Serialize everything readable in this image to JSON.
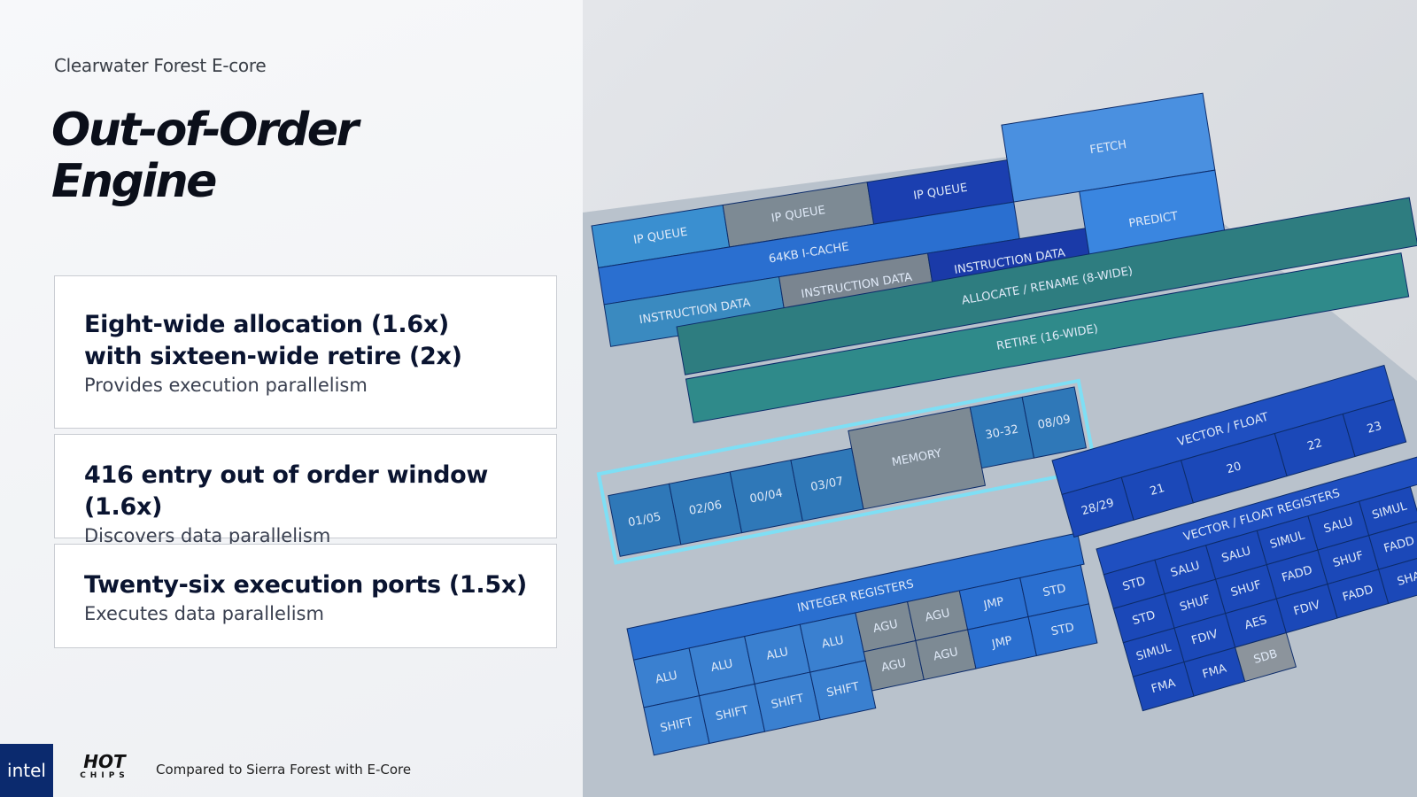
{
  "header": {
    "subtitle": "Clearwater Forest E-core",
    "title_lines": [
      "Out-of-Order",
      "Engine"
    ]
  },
  "cards": [
    {
      "heading_lines": [
        "Eight-wide allocation (1.6x)",
        "with sixteen-wide retire (2x)"
      ],
      "description": "Provides execution parallelism"
    },
    {
      "heading_lines": [
        "416 entry out of order window (1.6x)"
      ],
      "description": "Discovers data parallelism"
    },
    {
      "heading_lines": [
        "Twenty-six execution ports (1.5x)"
      ],
      "description": "Executes data parallelism"
    }
  ],
  "footer": {
    "logo": "intel",
    "event_logo": [
      "HOT",
      "CHIPS"
    ],
    "note": "Compared to Sierra Forest with E-Core"
  },
  "die": {
    "front_end": [
      "IP QUEUE",
      "IP QUEUE",
      "IP QUEUE",
      "FETCH",
      "64KB I-CACHE",
      "INSTRUCTION DATA",
      "INSTRUCTION DATA",
      "INSTRUCTION DATA",
      "PREDICT"
    ],
    "bars": [
      "ALLOCATE / RENAME (8-WIDE)",
      "RETIRE (16-WIDE)"
    ],
    "ports": [
      "01/05",
      "02/06",
      "00/04",
      "03/07",
      "MEMORY",
      "30-32",
      "08/09"
    ],
    "vector": [
      "VECTOR / FLOAT",
      "28/29",
      "21",
      "20",
      "22",
      "23"
    ],
    "execution": [
      "INTEGER REGISTERS",
      "ALU",
      "ALU",
      "ALU",
      "ALU",
      "AGU",
      "AGU",
      "JMP",
      "STD",
      "SHIFT",
      "SHIFT",
      "SHIFT",
      "SHIFT",
      "AGU",
      "AGU",
      "JMP",
      "STD"
    ],
    "vector_units": [
      "VECTOR / FLOAT REGISTERS",
      "STD",
      "SALU",
      "SALU",
      "SIMUL",
      "SALU",
      "SIMUL",
      "STD",
      "SHUF",
      "SHUF",
      "FADD",
      "SHUF",
      "FADD",
      "SIMUL",
      "FDIV",
      "AES",
      "FDIV",
      "FADD",
      "SHA",
      "FMA",
      "FMA",
      "SDB"
    ]
  }
}
